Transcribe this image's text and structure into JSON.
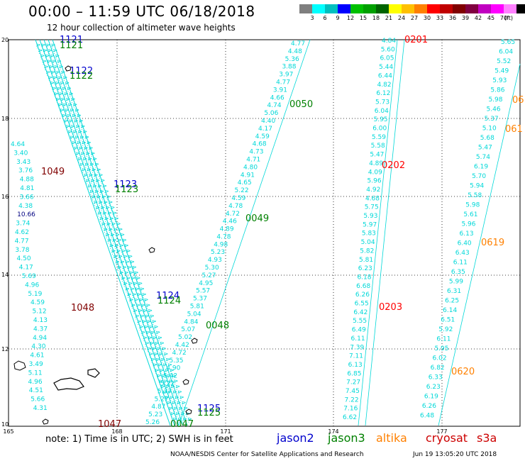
{
  "header": {
    "title": "00:00 – 11:59 UTC 06/18/2018",
    "subtitle": "12 hour collection of altimeter wave heights"
  },
  "colorbar": {
    "colors": [
      "#7f7f7f",
      "#00ffff",
      "#00bfbf",
      "#0000ff",
      "#00c000",
      "#00a000",
      "#006400",
      "#ffff00",
      "#ffc000",
      "#ff8000",
      "#ff0000",
      "#c00000",
      "#800000",
      "#800040",
      "#c000c0",
      "#ff00ff",
      "#ff80ff",
      "#000000"
    ],
    "labels": [
      "3",
      "6",
      "9",
      "12",
      "15",
      "18",
      "21",
      "24",
      "27",
      "30",
      "33",
      "36",
      "39",
      "42",
      "45",
      "70"
    ],
    "unit": "(ft)"
  },
  "axes": {
    "x_ticks": [
      "165",
      "168",
      "171",
      "174",
      "177"
    ],
    "y_ticks": [
      "20",
      "18",
      "16",
      "14",
      "12",
      "10"
    ]
  },
  "passes": [
    {
      "id": "1121",
      "sat": "jason2",
      "color": "#0000cc"
    },
    {
      "id": "1121",
      "sat": "jason3",
      "color": "#008000"
    },
    {
      "id": "1122",
      "sat": "jason2",
      "color": "#0000cc"
    },
    {
      "id": "1122",
      "sat": "jason3",
      "color": "#008000"
    },
    {
      "id": "1123",
      "sat": "jason2",
      "color": "#0000cc"
    },
    {
      "id": "1123",
      "sat": "jason3",
      "color": "#008000"
    },
    {
      "id": "1124",
      "sat": "jason2",
      "color": "#0000cc"
    },
    {
      "id": "1124",
      "sat": "jason3",
      "color": "#008000"
    },
    {
      "id": "1125",
      "sat": "jason2",
      "color": "#0000cc"
    },
    {
      "id": "1125",
      "sat": "jason3",
      "color": "#008000"
    },
    {
      "id": "1049",
      "sat": "cryosat",
      "color": "#800000"
    },
    {
      "id": "1048",
      "sat": "cryosat",
      "color": "#800000"
    },
    {
      "id": "1047",
      "sat": "cryosat",
      "color": "#800000"
    },
    {
      "id": "0050",
      "sat": "jason3",
      "color": "#008000"
    },
    {
      "id": "0049",
      "sat": "jason3",
      "color": "#008000"
    },
    {
      "id": "0048",
      "sat": "jason3",
      "color": "#008000"
    },
    {
      "id": "0047",
      "sat": "jason3",
      "color": "#008000"
    },
    {
      "id": "0201",
      "sat": "s3a",
      "color": "#ff0000"
    },
    {
      "id": "0202",
      "sat": "s3a",
      "color": "#ff0000"
    },
    {
      "id": "0203",
      "sat": "s3a",
      "color": "#ff0000"
    },
    {
      "id": "06",
      "sat": "altika",
      "color": "#ff8000"
    },
    {
      "id": "061",
      "sat": "altika",
      "color": "#ff8000"
    },
    {
      "id": "0619",
      "sat": "altika",
      "color": "#ff8000"
    },
    {
      "id": "0620",
      "sat": "altika",
      "color": "#ff8000"
    }
  ],
  "tracks": {
    "left": [
      "4.64",
      "3.40",
      "3.43",
      "3.76",
      "4.88",
      "4.81",
      "3.66",
      "4.38",
      "10.66",
      "3.74",
      "4.62",
      "4.77",
      "3.78",
      "4.50",
      "4.17",
      "5.69",
      "4.96",
      "5.19",
      "4.59",
      "5.12",
      "4.13",
      "4.37",
      "4.94",
      "4.30",
      "4.61",
      "3.49",
      "5.11",
      "4.96",
      "4.51",
      "5.66",
      "4.31"
    ],
    "diag": [
      "4.77",
      "4.48",
      "5.36",
      "3.88",
      "3.97",
      "4.77",
      "3.91",
      "4.66",
      "4.74",
      "5.06",
      "4.40",
      "4.17",
      "4.59",
      "4.68",
      "4.73",
      "4.71",
      "4.80",
      "4.91",
      "4.65",
      "5.22",
      "4.59",
      "4.78",
      "4.72",
      "4.46",
      "4.89",
      "4.78",
      "4.98",
      "5.23",
      "4.93",
      "5.30",
      "5.27",
      "4.95",
      "5.57",
      "5.37",
      "5.81",
      "5.04",
      "4.84",
      "5.07",
      "5.02",
      "4.42",
      "4.72",
      "5.35",
      "4.90",
      "5.42",
      "5.22",
      "5.37",
      "5.27",
      "4.87",
      "5.23",
      "5.26"
    ],
    "t1": [
      "4.84",
      "5.60",
      "6.05",
      "5.44",
      "6.44",
      "4.82",
      "6.12",
      "5.73",
      "6.04",
      "5.95",
      "6.00",
      "5.59",
      "5.58",
      "5.47",
      "4.89",
      "4.09",
      "5.96",
      "4.92",
      "4.68",
      "5.75",
      "5.93",
      "5.97",
      "5.83",
      "5.04",
      "5.82",
      "5.81",
      "6.23",
      "6.18",
      "6.68",
      "6.26",
      "6.55",
      "6.42",
      "5.55",
      "6.49",
      "6.11",
      "7.39",
      "7.11",
      "6.13",
      "6.85",
      "7.27",
      "7.45",
      "7.22",
      "7.16",
      "6.62"
    ],
    "t2": [
      "5.65",
      "6.04",
      "5.52",
      "5.49",
      "5.93",
      "5.86",
      "5.98",
      "5.46",
      "5.37",
      "5.10",
      "5.68",
      "5.47",
      "5.74",
      "6.19",
      "5.70",
      "5.94",
      "5.58",
      "5.98",
      "5.61",
      "5.96",
      "6.13",
      "6.40",
      "6.43",
      "6.11",
      "6.35",
      "5.99",
      "6.31",
      "6.25",
      "6.14",
      "6.51",
      "5.92",
      "6.11",
      "5.95",
      "6.02",
      "6.82",
      "6.33",
      "6.23",
      "6.19",
      "6.26",
      "6.48"
    ]
  },
  "legend": {
    "note": "note:  1) Time is in UTC;  2) SWH is in feet",
    "sats": [
      {
        "name": "jason2",
        "color": "#0000cc"
      },
      {
        "name": "jason3",
        "color": "#008000"
      },
      {
        "name": "altika",
        "color": "#ff8000"
      },
      {
        "name": "cryosat",
        "color": "#cc0000"
      },
      {
        "name": "s3a",
        "color": "#cc0000"
      }
    ]
  },
  "footer": {
    "credit": "NOAA/NESDIS Center for Satellite Applications and Research",
    "date": "Jun 19 13:05:20 UTC 2018"
  },
  "style": {
    "track_color": "#00d8d8",
    "grid_color": "#000000"
  }
}
